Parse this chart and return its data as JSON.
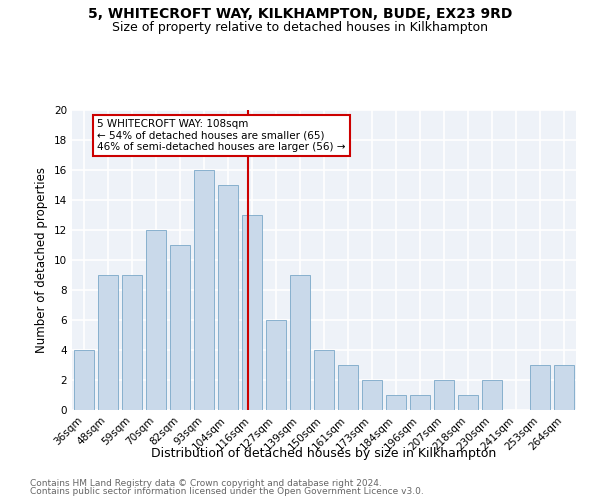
{
  "title": "5, WHITECROFT WAY, KILKHAMPTON, BUDE, EX23 9RD",
  "subtitle": "Size of property relative to detached houses in Kilkhampton",
  "xlabel": "Distribution of detached houses by size in Kilkhampton",
  "ylabel": "Number of detached properties",
  "categories": [
    "36sqm",
    "48sqm",
    "59sqm",
    "70sqm",
    "82sqm",
    "93sqm",
    "104sqm",
    "116sqm",
    "127sqm",
    "139sqm",
    "150sqm",
    "161sqm",
    "173sqm",
    "184sqm",
    "196sqm",
    "207sqm",
    "218sqm",
    "230sqm",
    "241sqm",
    "253sqm",
    "264sqm"
  ],
  "values": [
    4,
    9,
    9,
    12,
    11,
    16,
    15,
    13,
    6,
    9,
    4,
    3,
    2,
    1,
    1,
    2,
    1,
    2,
    0,
    3,
    3
  ],
  "bar_color": "#c9d9ea",
  "bar_edge_color": "#7aa8c8",
  "vline_x": 6.85,
  "vline_color": "#cc0000",
  "annotation_text": "5 WHITECROFT WAY: 108sqm\n← 54% of detached houses are smaller (65)\n46% of semi-detached houses are larger (56) →",
  "annotation_box_color": "#ffffff",
  "annotation_box_edge_color": "#cc0000",
  "ylim": [
    0,
    20
  ],
  "yticks": [
    0,
    2,
    4,
    6,
    8,
    10,
    12,
    14,
    16,
    18,
    20
  ],
  "title_fontsize": 10,
  "subtitle_fontsize": 9,
  "xlabel_fontsize": 9,
  "ylabel_fontsize": 8.5,
  "tick_fontsize": 7.5,
  "annotation_fontsize": 7.5,
  "footer_line1": "Contains HM Land Registry data © Crown copyright and database right 2024.",
  "footer_line2": "Contains public sector information licensed under the Open Government Licence v3.0.",
  "footer_fontsize": 6.5,
  "bg_color": "#eef2f8",
  "grid_color": "#ffffff"
}
